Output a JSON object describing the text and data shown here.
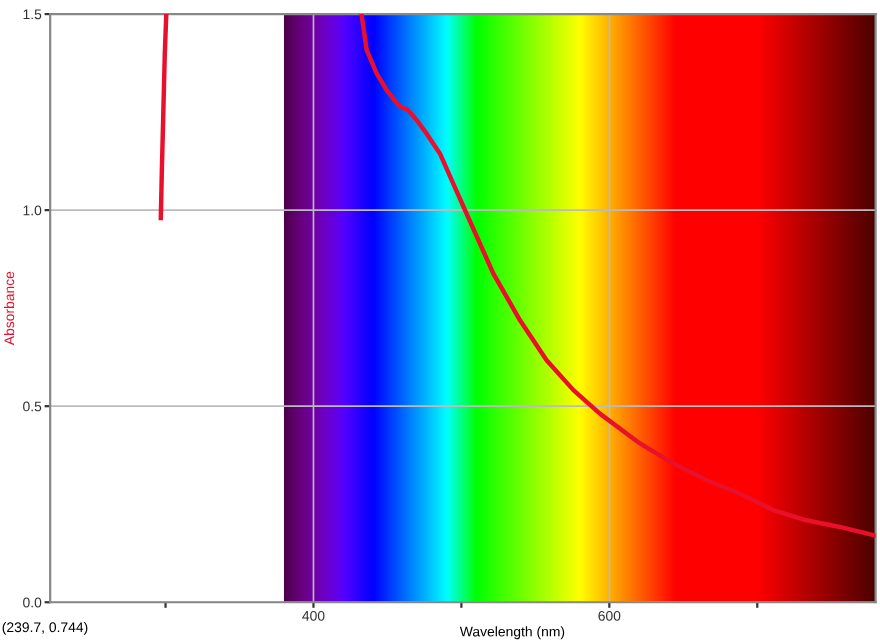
{
  "chart_data": {
    "type": "line",
    "xlabel": "Wavelength (nm)",
    "ylabel": "Absorbance",
    "annotations": [
      "(239.7, 0.744)"
    ],
    "xlim": [
      222,
      780
    ],
    "ylim": [
      0,
      1.5
    ],
    "xticks": [
      {
        "value": 300,
        "label": null
      },
      400,
      {
        "value": 500,
        "label": null
      },
      600,
      {
        "value": 700,
        "label": null
      }
    ],
    "yticks": [
      {
        "value": 0,
        "label": "0.0"
      },
      {
        "value": 0.5,
        "label": "0.5"
      },
      {
        "value": 1,
        "label": "1.0"
      },
      {
        "value": 1.5,
        "label": "1.5"
      }
    ],
    "grid": true,
    "line_style": "solid",
    "marker": "none",
    "bands": [
      {
        "axis": "x",
        "from": 380,
        "to": 780
      }
    ],
    "series": [
      {
        "color": "#e8102a",
        "x": [
          296.8,
          297.5,
          298.5,
          299.5,
          300.5,
          366,
          432.4,
          436,
          442.7,
          449.5,
          457.6,
          463.9,
          469.7,
          476.5,
          485.5,
          503.5,
          521.6,
          539.6,
          557.6,
          575.7,
          593.6,
          620.7,
          643.2,
          665.7,
          688.2,
          710.8,
          733.2,
          755.8,
          780
        ],
        "values": [
          0.98,
          1.1,
          1.25,
          1.4,
          1.5,
          null,
          1.5,
          1.408,
          1.349,
          1.306,
          1.267,
          1.255,
          1.23,
          1.195,
          1.144,
          0.991,
          0.838,
          0.719,
          0.617,
          0.541,
          0.481,
          0.405,
          0.354,
          0.311,
          0.277,
          0.235,
          0.209,
          0.192,
          0.17
        ]
      }
    ]
  }
}
